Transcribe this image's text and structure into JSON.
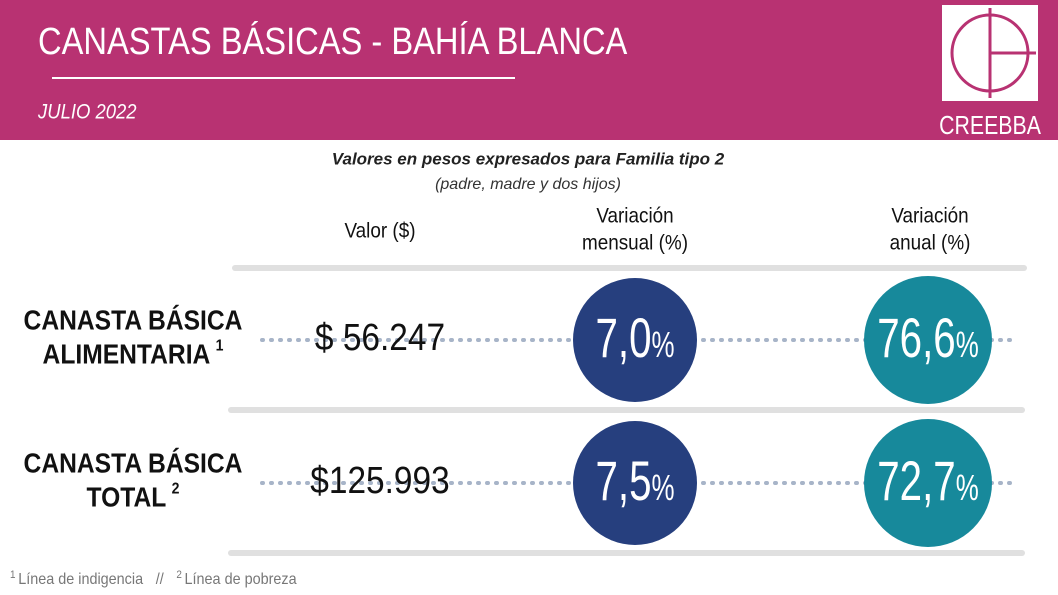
{
  "header": {
    "title": "CANASTAS  BÁSICAS - BAHÍA BLANCA",
    "period": "JULIO 2022",
    "logo": "CREEBBA"
  },
  "note": {
    "line1": "Valores en pesos expresados para Familia tipo 2",
    "line2": "(padre, madre y dos hijos)"
  },
  "columns": {
    "value": [
      "Valor ($)"
    ],
    "monthly": [
      "Variación",
      "mensual (%)"
    ],
    "annual": [
      "Variación",
      "anual (%)"
    ]
  },
  "rows": [
    {
      "label": [
        "CANASTA BÁSICA",
        "ALIMENTARIA"
      ],
      "footnote": "1",
      "value": "$ 56.247",
      "monthly": {
        "number": "7,0",
        "unit": "%"
      },
      "annual": {
        "number": "76,6",
        "unit": "%"
      }
    },
    {
      "label": [
        "CANASTA BÁSICA",
        "TOTAL"
      ],
      "footnote": "2",
      "value": "$125.993",
      "monthly": {
        "number": "7,5",
        "unit": "%"
      },
      "annual": {
        "number": "72,7",
        "unit": "%"
      }
    }
  ],
  "footnotes": {
    "items": [
      {
        "mark": "1",
        "text": "Línea de indigencia"
      },
      {
        "mark": "2",
        "text": "Línea de pobreza"
      }
    ],
    "separator": "//"
  }
}
